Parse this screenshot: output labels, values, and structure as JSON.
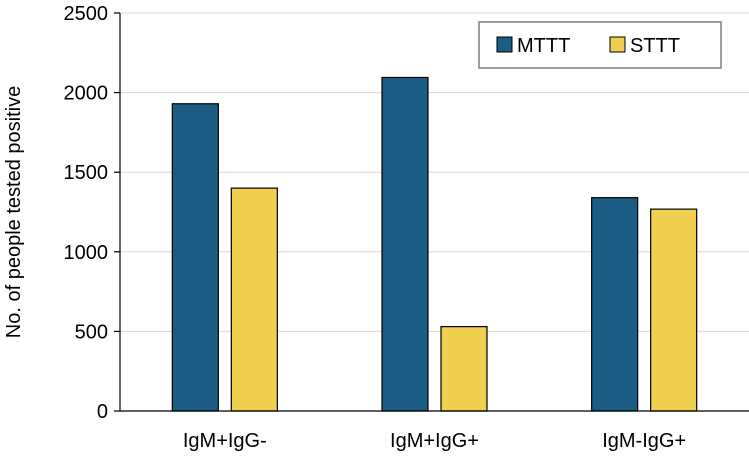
{
  "chart_data": {
    "type": "bar",
    "title": "",
    "xlabel": "",
    "ylabel": "No. of people tested positive",
    "categories": [
      "IgM+IgG-",
      "IgM+IgG+",
      "IgM-IgG+"
    ],
    "series": [
      {
        "name": "MTTT",
        "values": [
          1930,
          2095,
          1340
        ],
        "color": "#1b5d84"
      },
      {
        "name": "STTT",
        "values": [
          1400,
          530,
          1268
        ],
        "color": "#f1cf4e"
      }
    ],
    "ylim": [
      0,
      2500
    ],
    "yticks": [
      0,
      500,
      1000,
      1500,
      2000,
      2500
    ],
    "grid": true,
    "legend_position": "top-right"
  }
}
